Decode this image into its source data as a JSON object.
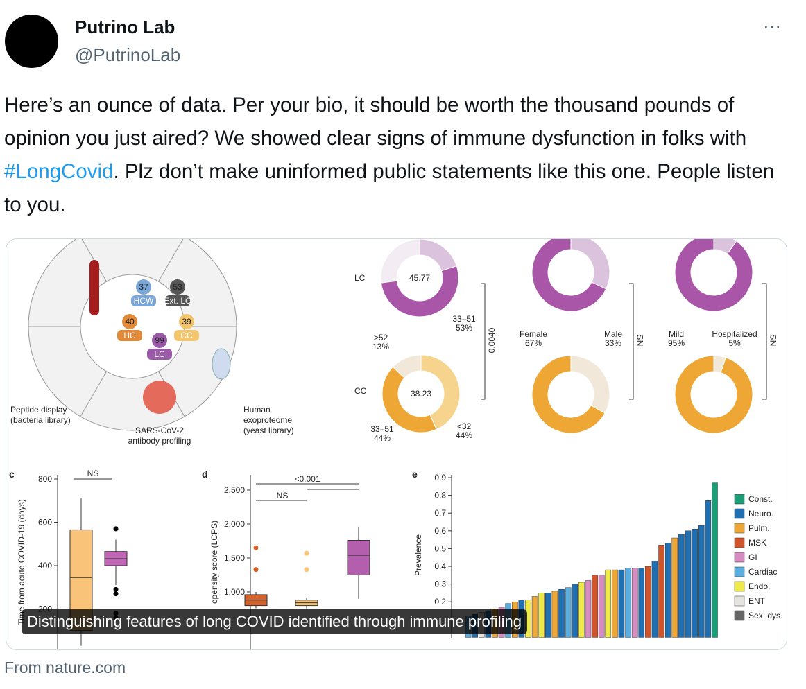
{
  "tweet": {
    "author": {
      "name": "Putrino Lab",
      "handle": "@PutrinoLab"
    },
    "more": "···",
    "text": [
      "Here’s an ounce of data. Per your bio, it should be worth the thousand pounds of opinion you just aired? We showed clear signs of immune dysfunction in folks with ",
      "#LongCovid",
      ". Plz don’t make uninformed public statements like this one. People listen to you."
    ]
  },
  "media": {
    "caption": "Distinguishing features of long COVID identified through immune profiling",
    "source": "From nature.com",
    "figure": {
      "cohort": {
        "groups": [
          {
            "n": 37,
            "label": "HCW",
            "color": "#7aa6d8"
          },
          {
            "n": 53,
            "label": "Ext. LC",
            "color": "#555555"
          },
          {
            "n": 40,
            "label": "HC",
            "color": "#e08a3a"
          },
          {
            "n": 39,
            "label": "CC",
            "color": "#f3c66e"
          },
          {
            "n": 99,
            "label": "LC",
            "color": "#9a5aa8"
          }
        ],
        "labels": [
          [
            "Peptide display",
            "(bacteria library)"
          ],
          [
            "SARS-CoV-2",
            "antibody profiling"
          ],
          [
            "Human",
            "exoproteome",
            "(yeast library)"
          ]
        ]
      },
      "donut_rows": [
        "LC",
        "CC"
      ],
      "donuts": [
        {
          "center": 45.77,
          "segments": [
            {
              "value": 20,
              "color": "#dcc3dd"
            },
            {
              "value": 53,
              "color": "#a955a8"
            },
            {
              "value": 27,
              "color": "#f3ecf3"
            }
          ]
        },
        {
          "center": 38.23,
          "segments": [
            {
              "value": 44,
              "color": "#f7d48e"
            },
            {
              "value": 44,
              "color": "#eea735"
            },
            {
              "value": 13,
              "color": "#f1e8da"
            }
          ]
        },
        {
          "segments": [
            {
              "value": 32,
              "color": "#dcc3dd"
            },
            {
              "value": 68,
              "color": "#a955a8"
            }
          ]
        },
        {
          "segments": [
            {
              "value": 33,
              "color": "#f1e8da"
            },
            {
              "value": 67,
              "color": "#eea735"
            }
          ]
        },
        {
          "segments": [
            {
              "value": 10,
              "color": "#dcc3dd"
            },
            {
              "value": 90,
              "color": "#a955a8"
            }
          ]
        },
        {
          "segments": [
            {
              "value": 5,
              "color": "#f1e8da"
            },
            {
              "value": 95,
              "color": "#eea735"
            }
          ]
        }
      ],
      "donut_labels": [
        [
          "33–51",
          "53%"
        ],
        [
          ">52",
          "13%"
        ],
        [
          "33–51",
          "44%"
        ],
        [
          "<32",
          "44%"
        ],
        [
          "Female",
          "67%"
        ],
        [
          "Male",
          "33%"
        ],
        [
          "Mild",
          "95%"
        ],
        [
          "Hospitalized",
          "5%"
        ]
      ],
      "brackets": [
        "0.0040",
        "NS",
        "NS"
      ],
      "panel_c": {
        "letter": "c",
        "ylabel": "Time from acute COVID-19 (days)",
        "yticks": [
          200,
          400,
          600,
          800
        ],
        "ylim": [
          0,
          800
        ],
        "test": "NS",
        "boxes": [
          {
            "color": "#f9c47a",
            "whisker_low": 30,
            "q1": 100,
            "median": 345,
            "q3": 565,
            "whisker_high": 710,
            "outliers": []
          },
          {
            "color": "#c166b6",
            "whisker_low": 310,
            "q1": 400,
            "median": 432,
            "q3": 465,
            "whisker_high": 520,
            "outliers": [
              570,
              290,
              270,
              180,
              160
            ]
          }
        ]
      },
      "panel_d": {
        "letter": "d",
        "ylabel": "opensity score (LCPS)",
        "yticks": [
          {
            "value": 1000,
            "label": "1,000"
          },
          {
            "value": 1500,
            "label": "1,500"
          },
          {
            "value": 2000,
            "label": "2,000"
          },
          {
            "value": 2500,
            "label": "2,500"
          }
        ],
        "tests": [
          "<0.001",
          "NS"
        ],
        "boxes": [
          {
            "color": "#d4622a",
            "whisker_low": 760,
            "q1": 800,
            "median": 880,
            "q3": 960,
            "whisker_high": 1000,
            "outliers": [
              1650,
              1330
            ]
          },
          {
            "color": "#f6c476",
            "whisker_low": 760,
            "q1": 800,
            "median": 840,
            "q3": 880,
            "whisker_high": 920,
            "outliers": [
              1570,
              1330
            ]
          },
          {
            "color": "#b45fae",
            "whisker_low": 900,
            "q1": 1250,
            "median": 1540,
            "q3": 1760,
            "whisker_high": 1960,
            "outliers": []
          }
        ]
      },
      "panel_e": {
        "letter": "e",
        "ylabel": "Prevalence",
        "yticks": [
          0.2,
          0.3,
          0.4,
          0.5,
          0.6,
          0.7,
          0.8,
          0.9
        ],
        "legend": [
          {
            "label": "Const.",
            "color": "#1a9e77"
          },
          {
            "label": "Neuro.",
            "color": "#1f6fb3"
          },
          {
            "label": "Pulm.",
            "color": "#eea735"
          },
          {
            "label": "MSK",
            "color": "#d1552a"
          },
          {
            "label": "GI",
            "color": "#d68cc0"
          },
          {
            "label": "Cardiac",
            "color": "#5aaee0"
          },
          {
            "label": "Endo.",
            "color": "#efe94a"
          },
          {
            "label": "ENT",
            "color": "#e6e4de"
          },
          {
            "label": "Sex. dys.",
            "color": "#666666"
          }
        ],
        "values": [
          0.12,
          0.13,
          0.14,
          0.15,
          0.16,
          0.17,
          0.19,
          0.2,
          0.21,
          0.21,
          0.23,
          0.25,
          0.25,
          0.26,
          0.27,
          0.28,
          0.3,
          0.31,
          0.32,
          0.35,
          0.35,
          0.38,
          0.38,
          0.38,
          0.39,
          0.39,
          0.39,
          0.4,
          0.43,
          0.52,
          0.53,
          0.56,
          0.58,
          0.6,
          0.61,
          0.63,
          0.77,
          0.87
        ],
        "groups": [
          5,
          1,
          7,
          1,
          2,
          4,
          5,
          2,
          1,
          6,
          2,
          6,
          1,
          2,
          1,
          5,
          1,
          6,
          4,
          3,
          4,
          6,
          2,
          1,
          5,
          4,
          1,
          3,
          1,
          3,
          1,
          2,
          1,
          1,
          1,
          1,
          1,
          0
        ]
      }
    }
  }
}
